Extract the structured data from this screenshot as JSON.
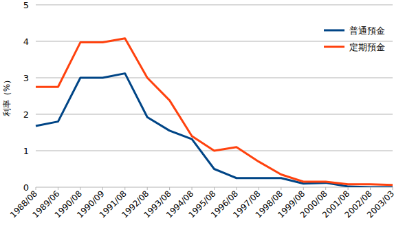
{
  "chart_data": {
    "type": "line",
    "y_label": "利率（%）",
    "categories": [
      "1988/08",
      "1989/06",
      "1990/08",
      "1990/09",
      "1991/08",
      "1992/08",
      "1993/08",
      "1994/08",
      "1995/08",
      "1996/08",
      "1997/08",
      "1998/08",
      "1999/08",
      "2000/08",
      "2001/08",
      "2002/08",
      "2003/03"
    ],
    "series": [
      {
        "name": "普通預金",
        "color": "#004586",
        "values": [
          1.68,
          1.8,
          3.0,
          3.0,
          3.12,
          1.92,
          1.55,
          1.32,
          0.5,
          0.25,
          0.25,
          0.25,
          0.1,
          0.12,
          0.02,
          0.001,
          0.001
        ]
      },
      {
        "name": "定期預金",
        "color": "#ff420e",
        "values": [
          2.75,
          2.75,
          3.97,
          3.97,
          4.08,
          3.0,
          2.38,
          1.4,
          1.0,
          1.1,
          0.7,
          0.35,
          0.15,
          0.15,
          0.08,
          0.08,
          0.06
        ]
      }
    ],
    "ylim": [
      0,
      5
    ],
    "yticks": [
      0,
      1,
      2,
      3,
      4,
      5
    ],
    "grid": true,
    "legend": "top-right"
  }
}
